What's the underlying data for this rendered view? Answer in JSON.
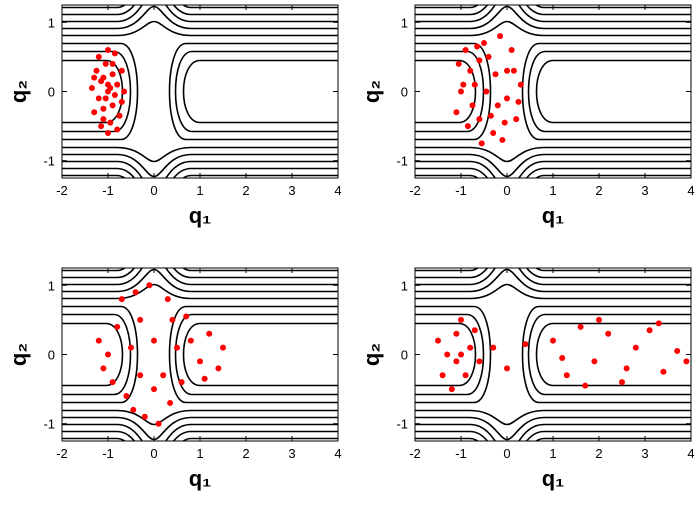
{
  "chart_data": [
    {
      "type": "scatter",
      "xlabel": "q₁",
      "ylabel": "q₂",
      "xlim": [
        -2,
        4
      ],
      "ylim": [
        -1.25,
        1.25
      ],
      "xticks": [
        -2,
        -1,
        0,
        1,
        2,
        3,
        4
      ],
      "yticks": [
        -1,
        0,
        1
      ],
      "series": [
        {
          "color": "#ff0000",
          "x": [
            -1,
            -1.1,
            -0.9,
            -1.2,
            -0.8,
            -1.05,
            -0.95,
            -1.25,
            -1.3,
            -0.75,
            -0.7,
            -1.15,
            -0.85,
            -1,
            -1.1,
            -0.9,
            -1.35,
            -0.65,
            -1.2,
            -0.8,
            -1.05,
            -0.95,
            -1.15,
            -0.85,
            -1,
            -1,
            -0.7,
            -1.3,
            -0.9,
            -1.1
          ],
          "y": [
            0,
            0.2,
            -0.2,
            -0.1,
            0.1,
            0.4,
            -0.45,
            0.3,
            -0.3,
            -0.35,
            0.3,
            -0.5,
            0.55,
            0.1,
            -0.25,
            0.25,
            0.05,
            0,
            0.5,
            -0.55,
            -0.1,
            0.05,
            0.15,
            -0.05,
            0.6,
            -0.6,
            -0.15,
            0.2,
            0.4,
            -0.4
          ]
        }
      ]
    },
    {
      "type": "scatter",
      "xlabel": "q₁",
      "ylabel": "q₂",
      "xlim": [
        -2,
        4
      ],
      "ylim": [
        -1.25,
        1.25
      ],
      "xticks": [
        -2,
        -1,
        0,
        1,
        2,
        3,
        4
      ],
      "yticks": [
        -1,
        0,
        1
      ],
      "series": [
        {
          "color": "#ff0000",
          "x": [
            -1,
            -0.8,
            -0.6,
            -0.4,
            -0.2,
            0,
            0.2,
            -1.1,
            -0.9,
            -0.5,
            -0.3,
            -0.7,
            0.1,
            -0.1,
            0.3,
            -1.05,
            -0.85,
            -0.45,
            -0.25,
            0,
            -0.6,
            -0.35,
            -0.75,
            0.15,
            -0.15,
            -0.55,
            -0.95,
            0.25,
            -0.65,
            -0.05
          ],
          "y": [
            0,
            0.3,
            -0.4,
            0.5,
            -0.2,
            0.3,
            -0.4,
            -0.3,
            0.6,
            0.7,
            -0.6,
            0.1,
            0.6,
            -0.7,
            0.1,
            0.4,
            -0.5,
            0,
            0.25,
            -0.1,
            0.45,
            -0.35,
            -0.2,
            0.3,
            0.8,
            -0.75,
            0.1,
            -0.15,
            0.65,
            -0.45
          ]
        }
      ]
    },
    {
      "type": "scatter",
      "xlabel": "q₁",
      "ylabel": "q₂",
      "xlim": [
        -2,
        4
      ],
      "ylim": [
        -1.25,
        1.25
      ],
      "xticks": [
        -2,
        -1,
        0,
        1,
        2,
        3,
        4
      ],
      "yticks": [
        -1,
        0,
        1
      ],
      "series": [
        {
          "color": "#ff0000",
          "x": [
            -1,
            -0.8,
            -0.6,
            -0.4,
            -0.2,
            0,
            0.2,
            0.4,
            0.6,
            0.8,
            1,
            1.2,
            1.4,
            1.5,
            -1.2,
            -0.9,
            -0.5,
            -0.3,
            -0.1,
            0.1,
            0.3,
            -0.7,
            -0.3,
            0.5,
            0.7,
            1.1,
            -1.1,
            0,
            -0.45,
            0.35
          ],
          "y": [
            0,
            0.4,
            -0.6,
            0.9,
            -0.9,
            0.2,
            -0.3,
            0.5,
            -0.4,
            0.2,
            -0.1,
            0.3,
            -0.2,
            0.1,
            0.2,
            -0.4,
            0.1,
            -0.3,
            1,
            -1,
            0.8,
            0.8,
            0.5,
            0.1,
            0.55,
            -0.35,
            -0.2,
            -0.5,
            -0.8,
            -0.7
          ]
        }
      ]
    },
    {
      "type": "scatter",
      "xlabel": "q₁",
      "ylabel": "q₂",
      "xlim": [
        -2,
        4
      ],
      "ylim": [
        -1.25,
        1.25
      ],
      "xticks": [
        -2,
        -1,
        0,
        1,
        2,
        3,
        4
      ],
      "yticks": [
        -1,
        0,
        1
      ],
      "series": [
        {
          "color": "#ff0000",
          "x": [
            -1.3,
            -1.1,
            -0.9,
            -1,
            -1.2,
            -0.8,
            -1.5,
            -0.6,
            -1.4,
            -0.7,
            -1,
            -1.1,
            -0.3,
            0,
            0.4,
            1,
            1.3,
            1.6,
            1.9,
            2.2,
            2.5,
            2.8,
            3.1,
            3.4,
            3.7,
            3.9,
            1.2,
            2,
            2.6,
            3.3,
            1.7
          ],
          "y": [
            0,
            0.3,
            -0.3,
            0.5,
            -0.5,
            0.1,
            0.2,
            -0.1,
            -0.3,
            0.35,
            0,
            -0.1,
            0.1,
            -0.2,
            0.15,
            0.2,
            -0.3,
            0.4,
            -0.1,
            0.3,
            -0.4,
            0.1,
            0.35,
            -0.25,
            0.05,
            -0.1,
            -0.05,
            0.5,
            -0.2,
            0.45,
            -0.45
          ]
        }
      ]
    }
  ]
}
